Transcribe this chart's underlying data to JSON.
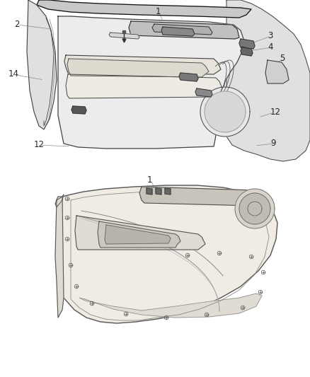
{
  "background_color": "#ffffff",
  "line_color": "#444444",
  "line_color_dark": "#111111",
  "line_color_light": "#888888",
  "fill_light": "#f2f2f2",
  "fill_mid": "#e0e0e0",
  "fill_dark": "#c8c8c8",
  "fill_panel": "#ececec",
  "label_fontsize": 8.5,
  "text_color": "#222222",
  "leader_color": "#888888",
  "top_labels": {
    "2": [
      28,
      500,
      75,
      493
    ],
    "14": [
      18,
      430,
      65,
      420
    ],
    "7": [
      155,
      437,
      183,
      430
    ],
    "8": [
      122,
      415,
      162,
      408
    ],
    "10": [
      95,
      388,
      118,
      387
    ],
    "11": [
      152,
      362,
      188,
      370
    ],
    "6": [
      250,
      425,
      265,
      418
    ],
    "9": [
      290,
      400,
      295,
      400
    ],
    "3": [
      375,
      480,
      348,
      468
    ],
    "4": [
      375,
      465,
      352,
      458
    ],
    "5": [
      393,
      448,
      380,
      438
    ],
    "1t": [
      222,
      515,
      228,
      500
    ]
  },
  "bottom_labels": {
    "1": [
      205,
      278,
      218,
      263
    ],
    "12r": [
      380,
      375,
      362,
      368
    ],
    "9b": [
      375,
      330,
      358,
      328
    ],
    "12l": [
      55,
      330,
      105,
      330
    ],
    "15": [
      365,
      250,
      348,
      253
    ],
    "13l": [
      90,
      195,
      130,
      210
    ],
    "13r": [
      278,
      192,
      270,
      208
    ]
  }
}
